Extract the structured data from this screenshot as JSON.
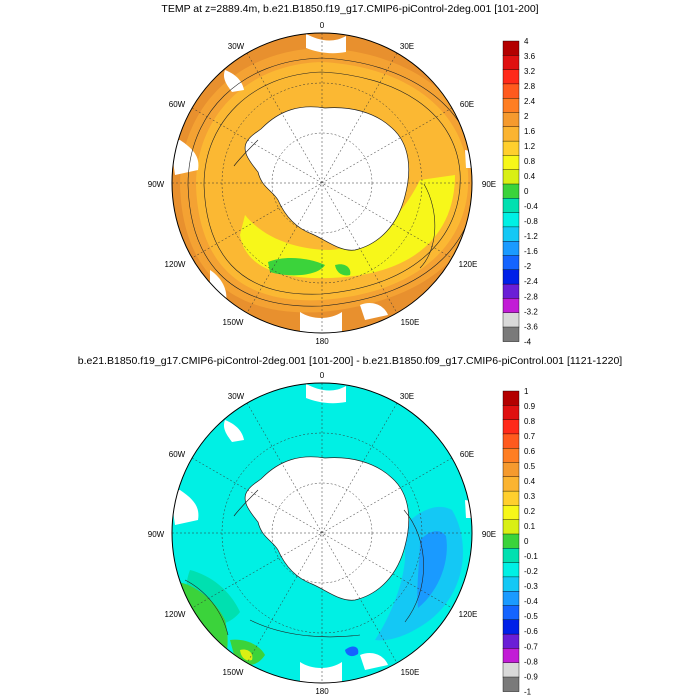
{
  "titles": {
    "top": "TEMP at z=2889.4m, b.e21.B1850.f19_g17.CMIP6-piControl-2deg.001 [101-200]",
    "bottom": "b.e21.B1850.f19_g17.CMIP6-piControl-2deg.001 [101-200] - b.e21.B1850.f09_g17.CMIP6-piControl.001 [1121-1220]"
  },
  "map_labels": {
    "lon_0": "0",
    "lon_30e": "30E",
    "lon_60e": "60E",
    "lon_90e": "90E",
    "lon_120e": "120E",
    "lon_150e": "150E",
    "lon_180": "180",
    "lon_150w": "150W",
    "lon_120w": "120W",
    "lon_90w": "90W",
    "lon_60w": "60W",
    "lon_30w": "30W"
  },
  "colorbars": {
    "top": {
      "labels": [
        "4",
        "3.6",
        "3.2",
        "2.8",
        "2.4",
        "2",
        "1.6",
        "1.2",
        "0.8",
        "0.4",
        "0",
        "-0.4",
        "-0.8",
        "-1.2",
        "-1.6",
        "-2",
        "-2.4",
        "-2.8",
        "-3.2",
        "-3.6",
        "-4"
      ],
      "colors": [
        "#b30000",
        "#e01010",
        "#ff2a1a",
        "#ff5a1e",
        "#ff7e22",
        "#f59a2e",
        "#fbb431",
        "#ffcf2e",
        "#f7f719",
        "#d9ef14",
        "#3bd33b",
        "#00e0b0",
        "#00f0e4",
        "#14c8f5",
        "#1a9aff",
        "#1464ff",
        "#0020e8",
        "#6a1ed6",
        "#c21cd6",
        "#d9d9d9",
        "#7a7a7a"
      ]
    },
    "bottom": {
      "labels": [
        "1",
        "0.9",
        "0.8",
        "0.7",
        "0.6",
        "0.5",
        "0.4",
        "0.3",
        "0.2",
        "0.1",
        "0",
        "-0.1",
        "-0.2",
        "-0.3",
        "-0.4",
        "-0.5",
        "-0.6",
        "-0.7",
        "-0.8",
        "-0.9",
        "-1"
      ],
      "colors": [
        "#b30000",
        "#e01010",
        "#ff2a1a",
        "#ff5a1e",
        "#ff7e22",
        "#f59a2e",
        "#fbb431",
        "#ffcf2e",
        "#f7f719",
        "#d9ef14",
        "#3bd33b",
        "#00e0b0",
        "#00f0e4",
        "#14c8f5",
        "#1a9aff",
        "#1464ff",
        "#0020e8",
        "#6a1ed6",
        "#c21cd6",
        "#d9d9d9",
        "#7a7a7a"
      ]
    }
  }
}
